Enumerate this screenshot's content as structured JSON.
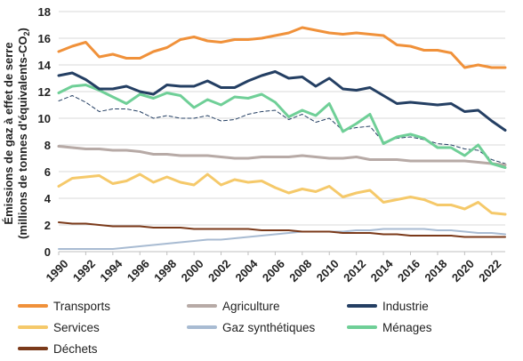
{
  "chart_data": {
    "type": "line",
    "ylabel_line1": "Émissions de gaz à effet de serre",
    "ylabel_line2": "(millions de tonnes d'équivalents-CO",
    "ylabel_sub": "2",
    "ylabel_close": ")",
    "ylim": [
      0,
      18
    ],
    "yticks": [
      "0",
      "2",
      "4",
      "6",
      "8",
      "10",
      "12",
      "14",
      "16",
      "18"
    ],
    "xlim": [
      1990,
      2023
    ],
    "xticks": [
      "1990",
      "1992",
      "1994",
      "1996",
      "1998",
      "2000",
      "2002",
      "2004",
      "2006",
      "2008",
      "2010",
      "2012",
      "2014",
      "2016",
      "2018",
      "2020",
      "2022"
    ],
    "grid": "horizontal",
    "legend_position": "bottom",
    "x": [
      1990,
      1991,
      1992,
      1993,
      1994,
      1995,
      1996,
      1997,
      1998,
      1999,
      2000,
      2001,
      2002,
      2003,
      2004,
      2005,
      2006,
      2007,
      2008,
      2009,
      2010,
      2011,
      2012,
      2013,
      2014,
      2015,
      2016,
      2017,
      2018,
      2019,
      2020,
      2021,
      2022,
      2023
    ],
    "series": [
      {
        "name": "Transports",
        "color": "#f0913a",
        "style": "solid",
        "width": 3,
        "values": [
          15.0,
          15.4,
          15.7,
          14.6,
          14.8,
          14.5,
          14.5,
          15.0,
          15.3,
          15.9,
          16.1,
          15.8,
          15.7,
          15.9,
          15.9,
          16.0,
          16.2,
          16.4,
          16.8,
          16.6,
          16.4,
          16.3,
          16.4,
          16.3,
          16.2,
          15.5,
          15.4,
          15.1,
          15.1,
          14.9,
          13.8,
          14.0,
          13.8,
          13.8
        ]
      },
      {
        "name": "Agriculture",
        "color": "#b7aaa6",
        "style": "solid",
        "width": 3,
        "values": [
          7.9,
          7.8,
          7.7,
          7.7,
          7.6,
          7.6,
          7.5,
          7.3,
          7.3,
          7.2,
          7.2,
          7.2,
          7.1,
          7.0,
          7.0,
          7.1,
          7.1,
          7.1,
          7.2,
          7.1,
          7.0,
          7.0,
          7.1,
          6.9,
          6.9,
          6.9,
          6.8,
          6.8,
          6.8,
          6.8,
          6.8,
          6.7,
          6.6,
          6.5
        ]
      },
      {
        "name": "Industrie",
        "color": "#243f63",
        "style": "solid",
        "width": 3,
        "values": [
          13.2,
          13.4,
          12.9,
          12.2,
          12.2,
          12.4,
          12.0,
          11.8,
          12.5,
          12.4,
          12.4,
          12.8,
          12.3,
          12.3,
          12.8,
          13.2,
          13.5,
          13.0,
          13.1,
          12.4,
          13.0,
          12.2,
          12.1,
          12.3,
          11.7,
          11.1,
          11.2,
          11.1,
          11.0,
          11.1,
          10.5,
          10.6,
          9.8,
          9.1
        ]
      },
      {
        "name": "Services",
        "color": "#f5c96a",
        "style": "solid",
        "width": 3,
        "values": [
          4.9,
          5.5,
          5.6,
          5.7,
          5.1,
          5.3,
          5.8,
          5.2,
          5.6,
          5.2,
          5.0,
          5.8,
          5.0,
          5.4,
          5.2,
          5.3,
          4.8,
          4.4,
          4.7,
          4.5,
          4.9,
          4.1,
          4.4,
          4.6,
          3.7,
          3.9,
          4.1,
          3.9,
          3.5,
          3.5,
          3.2,
          3.7,
          2.9,
          2.8
        ]
      },
      {
        "name": "Gaz synthétiques",
        "color": "#a8bbd2",
        "style": "solid",
        "width": 2,
        "values": [
          0.2,
          0.2,
          0.2,
          0.2,
          0.2,
          0.3,
          0.4,
          0.5,
          0.6,
          0.7,
          0.8,
          0.9,
          0.9,
          1.0,
          1.1,
          1.2,
          1.3,
          1.4,
          1.5,
          1.5,
          1.5,
          1.5,
          1.6,
          1.6,
          1.7,
          1.7,
          1.7,
          1.7,
          1.6,
          1.6,
          1.5,
          1.4,
          1.4,
          1.3
        ]
      },
      {
        "name": "Ménages",
        "color": "#6fcf97",
        "style": "solid",
        "width": 3,
        "values": [
          11.9,
          12.4,
          12.5,
          12.1,
          11.6,
          11.1,
          11.8,
          11.5,
          11.9,
          11.7,
          10.8,
          11.4,
          11.0,
          11.6,
          11.5,
          11.8,
          11.2,
          10.1,
          10.6,
          10.2,
          11.1,
          9.0,
          9.6,
          10.3,
          8.1,
          8.6,
          8.8,
          8.5,
          7.8,
          7.8,
          7.2,
          8.0,
          6.6,
          6.3
        ]
      },
      {
        "name": "Déchets",
        "color": "#7b3a1a",
        "style": "solid",
        "width": 2,
        "values": [
          2.2,
          2.1,
          2.1,
          2.0,
          1.9,
          1.9,
          1.9,
          1.8,
          1.8,
          1.8,
          1.7,
          1.7,
          1.7,
          1.7,
          1.7,
          1.6,
          1.6,
          1.6,
          1.5,
          1.5,
          1.5,
          1.4,
          1.4,
          1.4,
          1.3,
          1.3,
          1.2,
          1.2,
          1.2,
          1.2,
          1.1,
          1.1,
          1.1,
          1.1
        ]
      },
      {
        "name": "",
        "color": "#243f63",
        "style": "dashed",
        "width": 1,
        "values": [
          11.3,
          11.7,
          11.2,
          10.5,
          10.7,
          10.7,
          10.5,
          10.0,
          10.2,
          10.0,
          10.0,
          10.2,
          9.8,
          9.9,
          10.3,
          10.5,
          10.6,
          9.9,
          10.3,
          9.7,
          10.0,
          9.1,
          9.3,
          9.4,
          8.2,
          8.5,
          8.6,
          8.4,
          8.1,
          8.0,
          7.7,
          7.6,
          6.9,
          6.6
        ]
      }
    ]
  }
}
